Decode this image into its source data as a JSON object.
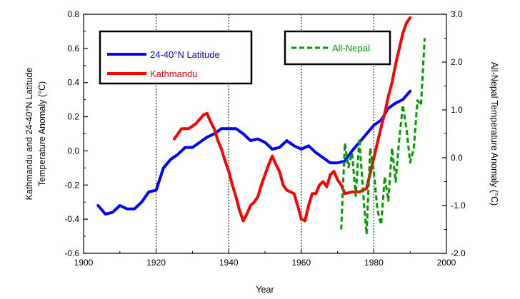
{
  "chart_data": {
    "type": "line",
    "title": "",
    "xlabel": "Year",
    "ylabel_left": [
      "Kathmandu and 24-40°N Latitude",
      "Temperature Anomaly (°C)"
    ],
    "ylabel_right": "All-Nepal Temperature Anomaly (°C)",
    "xlim": [
      1900,
      2000
    ],
    "ylim_left": [
      -0.6,
      0.8
    ],
    "ylim_right": [
      -2.0,
      3.0
    ],
    "x_ticks": [
      "1900",
      "1920",
      "1940",
      "1960",
      "1980",
      "2000"
    ],
    "y_left_ticks": [
      "0.8",
      "0.6",
      "0.4",
      "0.2",
      "0.0",
      "-0.2",
      "-0.4",
      "-0.6"
    ],
    "y_right_ticks": [
      "3.0",
      "2.0",
      "1.0",
      "0.0",
      "-1.0",
      "-2.0"
    ],
    "vertical_reference_years": [
      1920,
      1940,
      1960,
      1980
    ],
    "series": [
      {
        "name": "24-40°N Latitude",
        "axis": "left",
        "color": "#0000ff",
        "style": "solid",
        "points": [
          [
            1904,
            -0.32
          ],
          [
            1906,
            -0.37
          ],
          [
            1908,
            -0.36
          ],
          [
            1910,
            -0.32
          ],
          [
            1912,
            -0.34
          ],
          [
            1914,
            -0.34
          ],
          [
            1916,
            -0.3
          ],
          [
            1918,
            -0.24
          ],
          [
            1920,
            -0.23
          ],
          [
            1922,
            -0.1
          ],
          [
            1924,
            -0.05
          ],
          [
            1926,
            -0.02
          ],
          [
            1928,
            0.02
          ],
          [
            1930,
            0.02
          ],
          [
            1932,
            0.05
          ],
          [
            1934,
            0.08
          ],
          [
            1936,
            0.1
          ],
          [
            1938,
            0.13
          ],
          [
            1940,
            0.13
          ],
          [
            1942,
            0.13
          ],
          [
            1944,
            0.1
          ],
          [
            1946,
            0.06
          ],
          [
            1948,
            0.07
          ],
          [
            1950,
            0.05
          ],
          [
            1952,
            0.01
          ],
          [
            1954,
            0.02
          ],
          [
            1956,
            0.06
          ],
          [
            1958,
            0.03
          ],
          [
            1960,
            0.01
          ],
          [
            1962,
            0.03
          ],
          [
            1964,
            -0.01
          ],
          [
            1966,
            -0.04
          ],
          [
            1968,
            -0.07
          ],
          [
            1970,
            -0.07
          ],
          [
            1972,
            -0.06
          ],
          [
            1974,
            0.0
          ],
          [
            1976,
            0.05
          ],
          [
            1978,
            0.1
          ],
          [
            1980,
            0.15
          ],
          [
            1982,
            0.18
          ],
          [
            1984,
            0.25
          ],
          [
            1986,
            0.28
          ],
          [
            1988,
            0.3
          ],
          [
            1990,
            0.35
          ]
        ]
      },
      {
        "name": "Kathmandu",
        "axis": "left",
        "color": "#ff0000",
        "style": "solid",
        "points": [
          [
            1925,
            0.07
          ],
          [
            1927,
            0.13
          ],
          [
            1929,
            0.13
          ],
          [
            1931,
            0.16
          ],
          [
            1933,
            0.21
          ],
          [
            1934,
            0.22
          ],
          [
            1935,
            0.17
          ],
          [
            1936,
            0.13
          ],
          [
            1937,
            0.06
          ],
          [
            1938,
            0.01
          ],
          [
            1939,
            -0.06
          ],
          [
            1940,
            -0.12
          ],
          [
            1941,
            -0.2
          ],
          [
            1942,
            -0.27
          ],
          [
            1943,
            -0.35
          ],
          [
            1944,
            -0.41
          ],
          [
            1945,
            -0.37
          ],
          [
            1946,
            -0.32
          ],
          [
            1947,
            -0.3
          ],
          [
            1948,
            -0.27
          ],
          [
            1949,
            -0.2
          ],
          [
            1950,
            -0.14
          ],
          [
            1951,
            -0.08
          ],
          [
            1952,
            -0.03
          ],
          [
            1953,
            -0.08
          ],
          [
            1954,
            -0.12
          ],
          [
            1955,
            -0.2
          ],
          [
            1956,
            -0.23
          ],
          [
            1957,
            -0.24
          ],
          [
            1958,
            -0.25
          ],
          [
            1959,
            -0.32
          ],
          [
            1960,
            -0.4
          ],
          [
            1961,
            -0.41
          ],
          [
            1962,
            -0.32
          ],
          [
            1963,
            -0.25
          ],
          [
            1964,
            -0.25
          ],
          [
            1965,
            -0.2
          ],
          [
            1966,
            -0.18
          ],
          [
            1967,
            -0.21
          ],
          [
            1968,
            -0.14
          ],
          [
            1969,
            -0.12
          ],
          [
            1970,
            -0.17
          ],
          [
            1971,
            -0.2
          ],
          [
            1972,
            -0.25
          ],
          [
            1974,
            -0.24
          ],
          [
            1976,
            -0.24
          ],
          [
            1978,
            -0.22
          ],
          [
            1979,
            -0.13
          ],
          [
            1980,
            -0.04
          ],
          [
            1981,
            0.05
          ],
          [
            1982,
            0.14
          ],
          [
            1983,
            0.22
          ],
          [
            1984,
            0.32
          ],
          [
            1985,
            0.4
          ],
          [
            1986,
            0.51
          ],
          [
            1987,
            0.6
          ],
          [
            1988,
            0.69
          ],
          [
            1989,
            0.75
          ],
          [
            1990,
            0.78
          ]
        ]
      },
      {
        "name": "All-Nepal",
        "axis": "right",
        "color": "#009900",
        "style": "dashed",
        "points": [
          [
            1971,
            -1.5
          ],
          [
            1972,
            0.3
          ],
          [
            1973,
            -0.2
          ],
          [
            1974,
            0.1
          ],
          [
            1975,
            -0.8
          ],
          [
            1976,
            0.4
          ],
          [
            1977,
            -0.7
          ],
          [
            1978,
            -1.6
          ],
          [
            1979,
            0.2
          ],
          [
            1980,
            -0.3
          ],
          [
            1981,
            -1.1
          ],
          [
            1982,
            -1.4
          ],
          [
            1983,
            -0.4
          ],
          [
            1984,
            -0.9
          ],
          [
            1985,
            0.2
          ],
          [
            1986,
            -0.5
          ],
          [
            1987,
            0.4
          ],
          [
            1988,
            1.1
          ],
          [
            1989,
            0.6
          ],
          [
            1990,
            -0.1
          ],
          [
            1991,
            0.2
          ],
          [
            1992,
            1.2
          ],
          [
            1993,
            1.1
          ],
          [
            1994,
            2.5
          ]
        ]
      }
    ],
    "legends": [
      {
        "entries": [
          "24-40°N Latitude",
          "Kathmandu"
        ],
        "placement": "top-left"
      },
      {
        "entries": [
          "All-Nepal"
        ],
        "placement": "top-right"
      }
    ]
  }
}
